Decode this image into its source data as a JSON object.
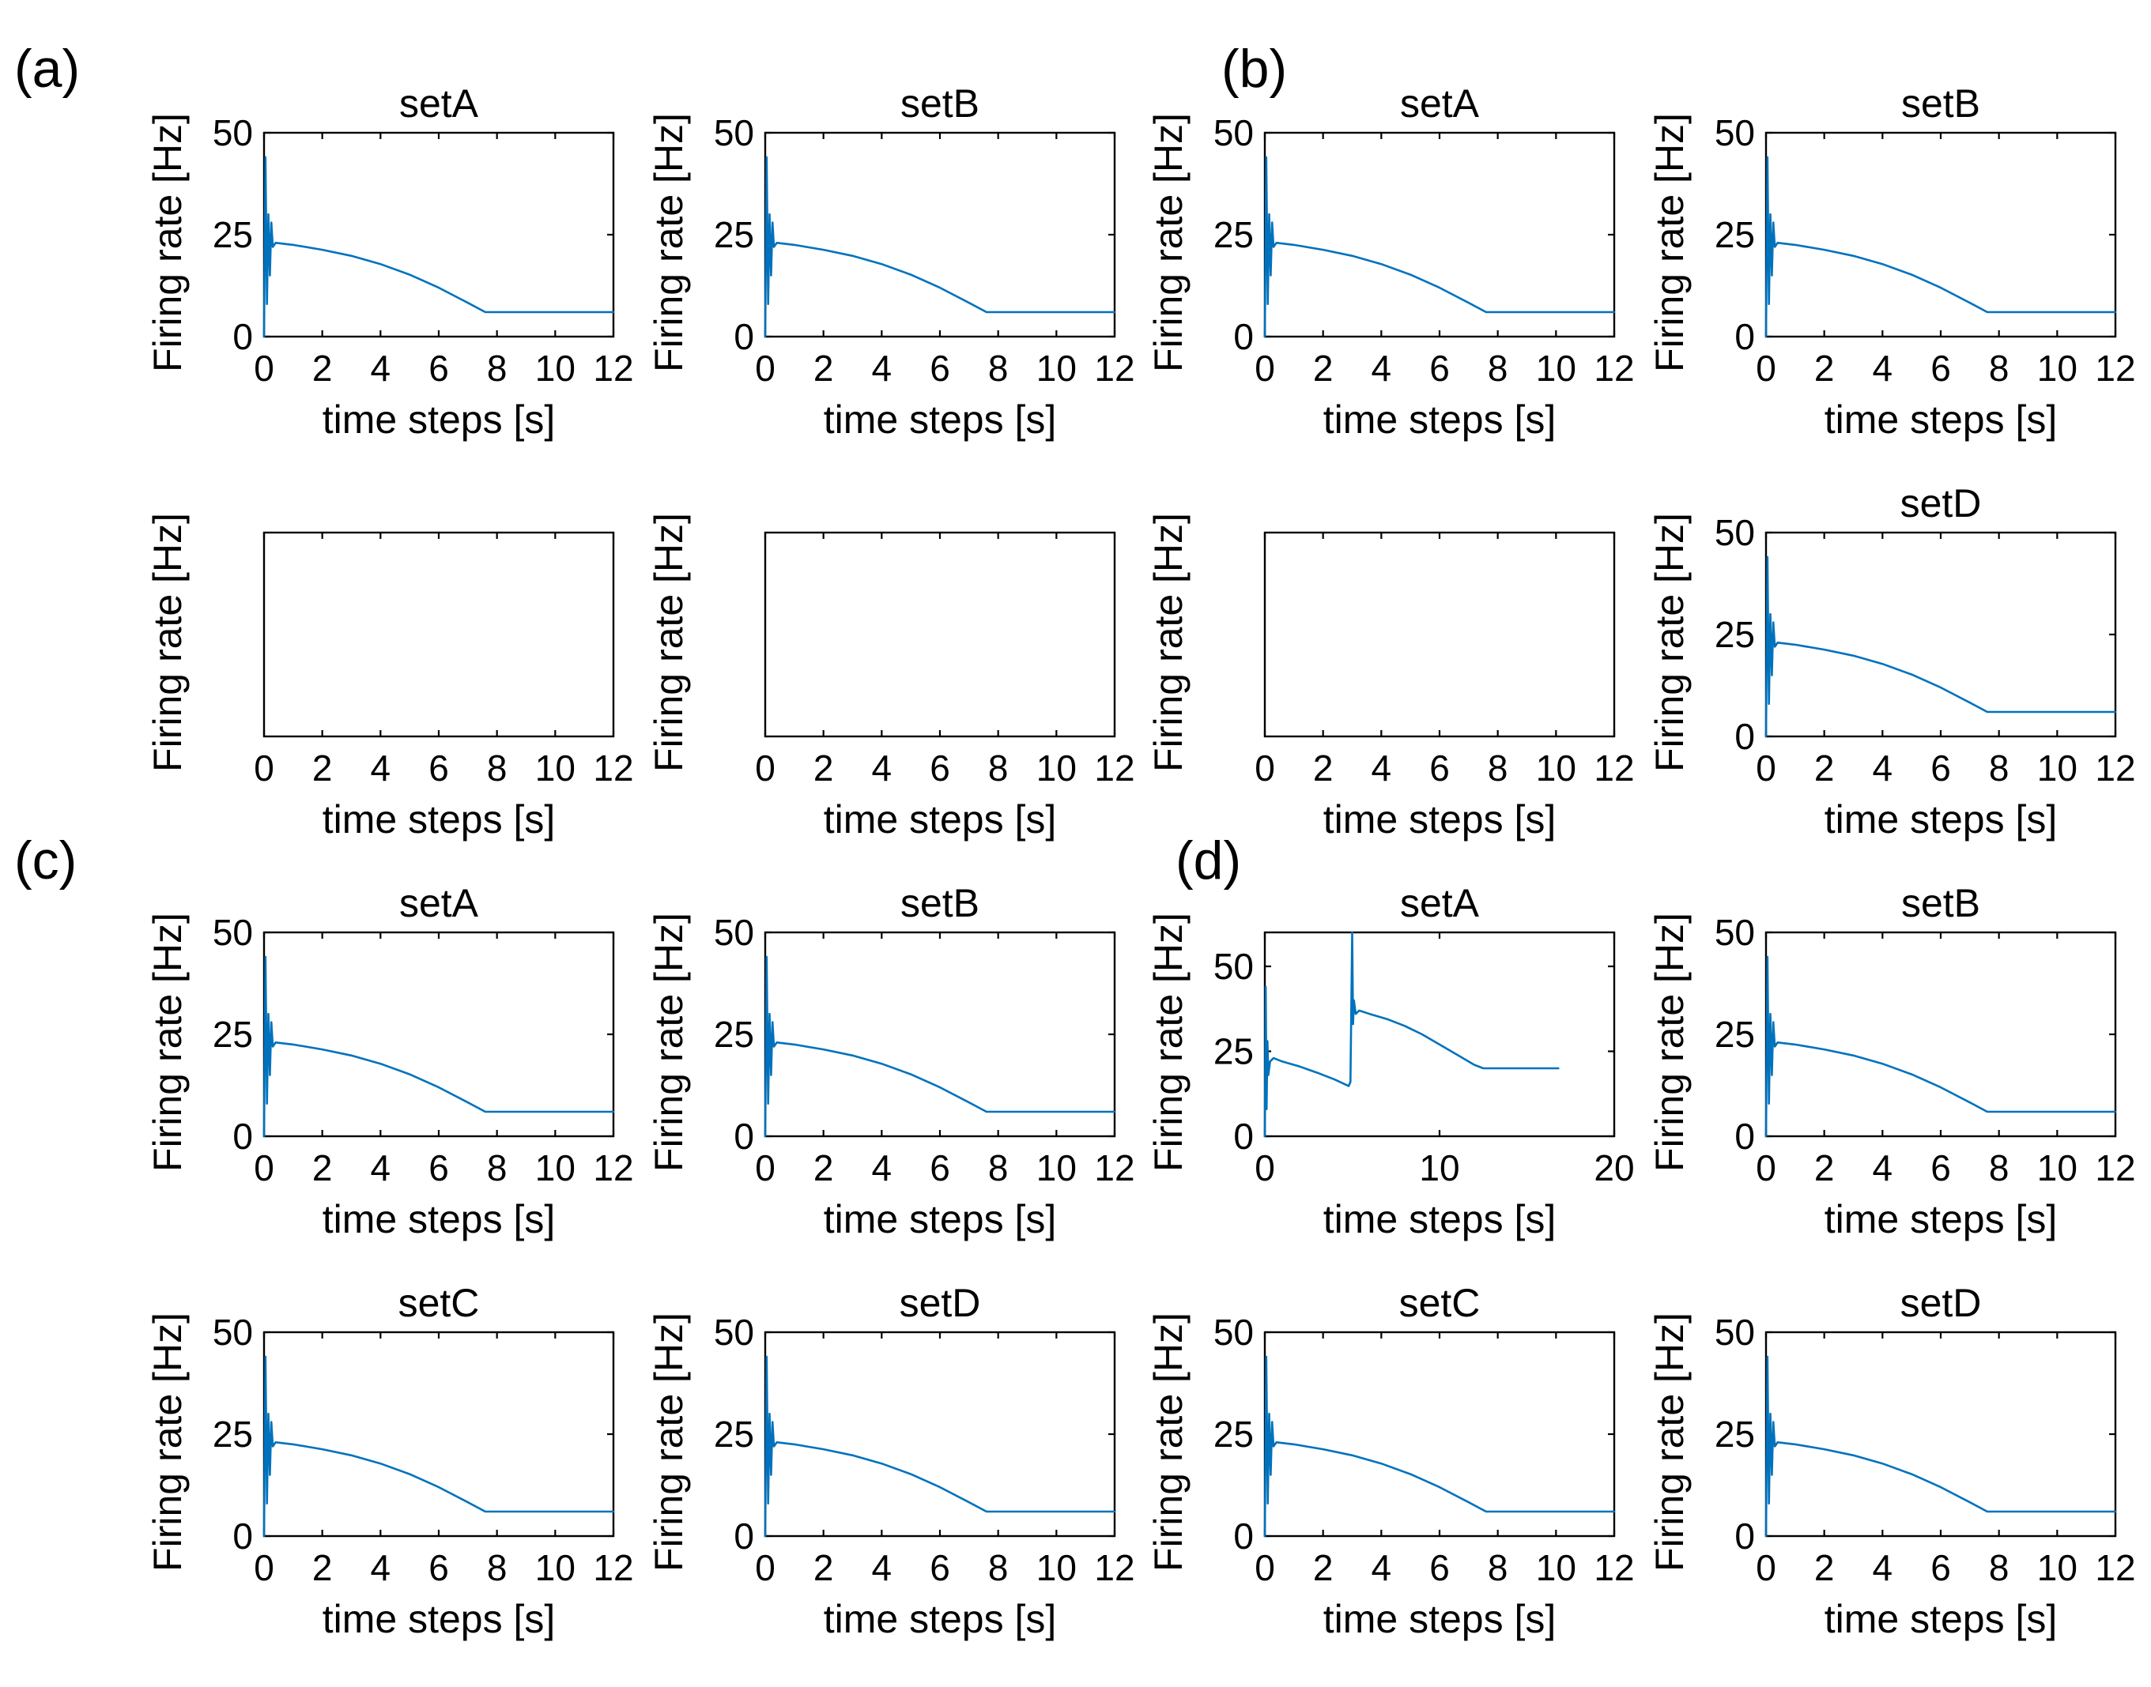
{
  "colors": {
    "series": "#0072BD",
    "axis": "#000000",
    "background": "#ffffff"
  },
  "panel_labels": [
    "(a)",
    "(b)",
    "(c)",
    "(d)"
  ],
  "chart_data": [
    {
      "id": "r0c0",
      "type": "line",
      "title": "setA",
      "xlabel": "time steps [s]",
      "ylabel": "Firing rate [Hz]",
      "xlim": [
        0,
        12
      ],
      "ylim": [
        0,
        50
      ],
      "xticks": [
        0,
        2,
        4,
        6,
        8,
        10,
        12
      ],
      "yticks": [
        0,
        25,
        50
      ],
      "grid": false,
      "series": [
        {
          "x": [
            0,
            0.05,
            0.1,
            0.15,
            0.2,
            0.25,
            0.3,
            0.4,
            1,
            2,
            3,
            4,
            5,
            6,
            7,
            7.6,
            8,
            9,
            10,
            11,
            12
          ],
          "y": [
            0,
            44,
            8,
            30,
            15,
            28,
            22,
            23,
            22.5,
            21.3,
            19.8,
            17.8,
            15.2,
            12,
            8.3,
            6,
            6,
            6,
            6,
            6,
            6
          ]
        }
      ]
    },
    {
      "id": "r0c1",
      "type": "line",
      "title": "setB",
      "xlabel": "time steps [s]",
      "ylabel": "Firing rate [Hz]",
      "xlim": [
        0,
        12
      ],
      "ylim": [
        0,
        50
      ],
      "xticks": [
        0,
        2,
        4,
        6,
        8,
        10,
        12
      ],
      "yticks": [
        0,
        25,
        50
      ],
      "grid": false,
      "series": [
        {
          "x": [
            0,
            0.05,
            0.1,
            0.15,
            0.2,
            0.25,
            0.3,
            0.4,
            1,
            2,
            3,
            4,
            5,
            6,
            7,
            7.6,
            8,
            9,
            10,
            11,
            12
          ],
          "y": [
            0,
            44,
            8,
            30,
            15,
            28,
            22,
            23,
            22.5,
            21.3,
            19.8,
            17.8,
            15.2,
            12,
            8.3,
            6,
            6,
            6,
            6,
            6,
            6
          ]
        }
      ]
    },
    {
      "id": "r0c2",
      "type": "line",
      "title": "setA",
      "xlabel": "time steps [s]",
      "ylabel": "Firing rate [Hz]",
      "xlim": [
        0,
        12
      ],
      "ylim": [
        0,
        50
      ],
      "xticks": [
        0,
        2,
        4,
        6,
        8,
        10,
        12
      ],
      "yticks": [
        0,
        25,
        50
      ],
      "grid": false,
      "series": [
        {
          "x": [
            0,
            0.05,
            0.1,
            0.15,
            0.2,
            0.25,
            0.3,
            0.4,
            1,
            2,
            3,
            4,
            5,
            6,
            7,
            7.6,
            8,
            9,
            10,
            11,
            12
          ],
          "y": [
            0,
            44,
            8,
            30,
            15,
            28,
            22,
            23,
            22.5,
            21.3,
            19.8,
            17.8,
            15.2,
            12,
            8.3,
            6,
            6,
            6,
            6,
            6,
            6
          ]
        }
      ]
    },
    {
      "id": "r0c3",
      "type": "line",
      "title": "setB",
      "xlabel": "time steps [s]",
      "ylabel": "Firing rate [Hz]",
      "xlim": [
        0,
        12
      ],
      "ylim": [
        0,
        50
      ],
      "xticks": [
        0,
        2,
        4,
        6,
        8,
        10,
        12
      ],
      "yticks": [
        0,
        25,
        50
      ],
      "grid": false,
      "series": [
        {
          "x": [
            0,
            0.05,
            0.1,
            0.15,
            0.2,
            0.25,
            0.3,
            0.4,
            1,
            2,
            3,
            4,
            5,
            6,
            7,
            7.6,
            8,
            9,
            10,
            11,
            12
          ],
          "y": [
            0,
            44,
            8,
            30,
            15,
            28,
            22,
            23,
            22.5,
            21.3,
            19.8,
            17.8,
            15.2,
            12,
            8.3,
            6,
            6,
            6,
            6,
            6,
            6
          ]
        }
      ]
    },
    {
      "id": "r1c0",
      "type": "line",
      "title": "",
      "xlabel": "time steps [s]",
      "ylabel": "Firing rate [Hz]",
      "xlim": [
        0,
        12
      ],
      "ylim": [
        0,
        50
      ],
      "xticks": [
        0,
        2,
        4,
        6,
        8,
        10,
        12
      ],
      "yticks": [],
      "grid": false,
      "series": []
    },
    {
      "id": "r1c1",
      "type": "line",
      "title": "",
      "xlabel": "time steps [s]",
      "ylabel": "Firing rate [Hz]",
      "xlim": [
        0,
        12
      ],
      "ylim": [
        0,
        50
      ],
      "xticks": [
        0,
        2,
        4,
        6,
        8,
        10,
        12
      ],
      "yticks": [],
      "grid": false,
      "series": []
    },
    {
      "id": "r1c2",
      "type": "line",
      "title": "",
      "xlabel": "time steps [s]",
      "ylabel": "Firing rate [Hz]",
      "xlim": [
        0,
        12
      ],
      "ylim": [
        0,
        50
      ],
      "xticks": [
        0,
        2,
        4,
        6,
        8,
        10,
        12
      ],
      "yticks": [],
      "grid": false,
      "series": []
    },
    {
      "id": "r1c3",
      "type": "line",
      "title": "setD",
      "xlabel": "time steps [s]",
      "ylabel": "Firing rate [Hz]",
      "xlim": [
        0,
        12
      ],
      "ylim": [
        0,
        50
      ],
      "xticks": [
        0,
        2,
        4,
        6,
        8,
        10,
        12
      ],
      "yticks": [
        0,
        25,
        50
      ],
      "grid": false,
      "series": [
        {
          "x": [
            0,
            0.05,
            0.1,
            0.15,
            0.2,
            0.25,
            0.3,
            0.4,
            1,
            2,
            3,
            4,
            5,
            6,
            7,
            7.6,
            8,
            9,
            10,
            11,
            12
          ],
          "y": [
            0,
            44,
            8,
            30,
            15,
            28,
            22,
            23,
            22.5,
            21.3,
            19.8,
            17.8,
            15.2,
            12,
            8.3,
            6,
            6,
            6,
            6,
            6,
            6
          ]
        }
      ]
    },
    {
      "id": "r2c0",
      "type": "line",
      "title": "setA",
      "xlabel": "time steps [s]",
      "ylabel": "Firing rate [Hz]",
      "xlim": [
        0,
        12
      ],
      "ylim": [
        0,
        50
      ],
      "xticks": [
        0,
        2,
        4,
        6,
        8,
        10,
        12
      ],
      "yticks": [
        0,
        25,
        50
      ],
      "grid": false,
      "series": [
        {
          "x": [
            0,
            0.05,
            0.1,
            0.15,
            0.2,
            0.25,
            0.3,
            0.4,
            1,
            2,
            3,
            4,
            5,
            6,
            7,
            7.6,
            8,
            9,
            10,
            11,
            12
          ],
          "y": [
            0,
            44,
            8,
            30,
            15,
            28,
            22,
            23,
            22.5,
            21.3,
            19.8,
            17.8,
            15.2,
            12,
            8.3,
            6,
            6,
            6,
            6,
            6,
            6
          ]
        }
      ]
    },
    {
      "id": "r2c1",
      "type": "line",
      "title": "setB",
      "xlabel": "time steps [s]",
      "ylabel": "Firing rate [Hz]",
      "xlim": [
        0,
        12
      ],
      "ylim": [
        0,
        50
      ],
      "xticks": [
        0,
        2,
        4,
        6,
        8,
        10,
        12
      ],
      "yticks": [
        0,
        25,
        50
      ],
      "grid": false,
      "series": [
        {
          "x": [
            0,
            0.05,
            0.1,
            0.15,
            0.2,
            0.25,
            0.3,
            0.4,
            1,
            2,
            3,
            4,
            5,
            6,
            7,
            7.6,
            8,
            9,
            10,
            11,
            12
          ],
          "y": [
            0,
            44,
            8,
            30,
            15,
            28,
            22,
            23,
            22.5,
            21.3,
            19.8,
            17.8,
            15.2,
            12,
            8.3,
            6,
            6,
            6,
            6,
            6,
            6
          ]
        }
      ]
    },
    {
      "id": "r2c2",
      "type": "line",
      "title": "setA",
      "xlabel": "time steps [s]",
      "ylabel": "Firing rate [Hz]",
      "xlim": [
        0,
        20
      ],
      "ylim": [
        0,
        60
      ],
      "xticks": [
        0,
        10,
        20
      ],
      "yticks": [
        0,
        25,
        50
      ],
      "grid": false,
      "series": [
        {
          "x": [
            0,
            0.05,
            0.1,
            0.15,
            0.2,
            0.3,
            0.5,
            1,
            2,
            3,
            4,
            4.8,
            4.9,
            5.0,
            5.05,
            5.1,
            5.2,
            5.4,
            6,
            7,
            8,
            9,
            10,
            11,
            12,
            12.5,
            13,
            14,
            15,
            16,
            16.8
          ],
          "y": [
            0,
            44,
            8,
            28,
            18,
            22,
            23,
            22,
            20.5,
            18.7,
            16.7,
            14.8,
            16,
            60,
            33,
            40,
            36,
            37,
            36,
            34.5,
            32.5,
            30,
            27,
            24,
            21,
            20,
            20,
            20,
            20,
            20,
            20
          ]
        }
      ]
    },
    {
      "id": "r2c3",
      "type": "line",
      "title": "setB",
      "xlabel": "time steps [s]",
      "ylabel": "Firing rate [Hz]",
      "xlim": [
        0,
        12
      ],
      "ylim": [
        0,
        50
      ],
      "xticks": [
        0,
        2,
        4,
        6,
        8,
        10,
        12
      ],
      "yticks": [
        0,
        25,
        50
      ],
      "grid": false,
      "series": [
        {
          "x": [
            0,
            0.05,
            0.1,
            0.15,
            0.2,
            0.25,
            0.3,
            0.4,
            1,
            2,
            3,
            4,
            5,
            6,
            7,
            7.6,
            8,
            9,
            10,
            11,
            12
          ],
          "y": [
            0,
            44,
            8,
            30,
            15,
            28,
            22,
            23,
            22.5,
            21.3,
            19.8,
            17.8,
            15.2,
            12,
            8.3,
            6,
            6,
            6,
            6,
            6,
            6
          ]
        }
      ]
    },
    {
      "id": "r3c0",
      "type": "line",
      "title": "setC",
      "xlabel": "time steps [s]",
      "ylabel": "Firing rate [Hz]",
      "xlim": [
        0,
        12
      ],
      "ylim": [
        0,
        50
      ],
      "xticks": [
        0,
        2,
        4,
        6,
        8,
        10,
        12
      ],
      "yticks": [
        0,
        25,
        50
      ],
      "grid": false,
      "series": [
        {
          "x": [
            0,
            0.05,
            0.1,
            0.15,
            0.2,
            0.25,
            0.3,
            0.4,
            1,
            2,
            3,
            4,
            5,
            6,
            7,
            7.6,
            8,
            9,
            10,
            11,
            12
          ],
          "y": [
            0,
            44,
            8,
            30,
            15,
            28,
            22,
            23,
            22.5,
            21.3,
            19.8,
            17.8,
            15.2,
            12,
            8.3,
            6,
            6,
            6,
            6,
            6,
            6
          ]
        }
      ]
    },
    {
      "id": "r3c1",
      "type": "line",
      "title": "setD",
      "xlabel": "time steps [s]",
      "ylabel": "Firing rate [Hz]",
      "xlim": [
        0,
        12
      ],
      "ylim": [
        0,
        50
      ],
      "xticks": [
        0,
        2,
        4,
        6,
        8,
        10,
        12
      ],
      "yticks": [
        0,
        25,
        50
      ],
      "grid": false,
      "series": [
        {
          "x": [
            0,
            0.05,
            0.1,
            0.15,
            0.2,
            0.25,
            0.3,
            0.4,
            1,
            2,
            3,
            4,
            5,
            6,
            7,
            7.6,
            8,
            9,
            10,
            11,
            12
          ],
          "y": [
            0,
            44,
            8,
            30,
            15,
            28,
            22,
            23,
            22.5,
            21.3,
            19.8,
            17.8,
            15.2,
            12,
            8.3,
            6,
            6,
            6,
            6,
            6,
            6
          ]
        }
      ]
    },
    {
      "id": "r3c2",
      "type": "line",
      "title": "setC",
      "xlabel": "time steps [s]",
      "ylabel": "Firing rate [Hz]",
      "xlim": [
        0,
        12
      ],
      "ylim": [
        0,
        50
      ],
      "xticks": [
        0,
        2,
        4,
        6,
        8,
        10,
        12
      ],
      "yticks": [
        0,
        25,
        50
      ],
      "grid": false,
      "series": [
        {
          "x": [
            0,
            0.05,
            0.1,
            0.15,
            0.2,
            0.25,
            0.3,
            0.4,
            1,
            2,
            3,
            4,
            5,
            6,
            7,
            7.6,
            8,
            9,
            10,
            11,
            12
          ],
          "y": [
            0,
            44,
            8,
            30,
            15,
            28,
            22,
            23,
            22.5,
            21.3,
            19.8,
            17.8,
            15.2,
            12,
            8.3,
            6,
            6,
            6,
            6,
            6,
            6
          ]
        }
      ]
    },
    {
      "id": "r3c3",
      "type": "line",
      "title": "setD",
      "xlabel": "time steps [s]",
      "ylabel": "Firing rate [Hz]",
      "xlim": [
        0,
        12
      ],
      "ylim": [
        0,
        50
      ],
      "xticks": [
        0,
        2,
        4,
        6,
        8,
        10,
        12
      ],
      "yticks": [
        0,
        25,
        50
      ],
      "grid": false,
      "series": [
        {
          "x": [
            0,
            0.05,
            0.1,
            0.15,
            0.2,
            0.25,
            0.3,
            0.4,
            1,
            2,
            3,
            4,
            5,
            6,
            7,
            7.6,
            8,
            9,
            10,
            11,
            12
          ],
          "y": [
            0,
            44,
            8,
            30,
            15,
            28,
            22,
            23,
            22.5,
            21.3,
            19.8,
            17.8,
            15.2,
            12,
            8.3,
            6,
            6,
            6,
            6,
            6,
            6
          ]
        }
      ]
    }
  ]
}
